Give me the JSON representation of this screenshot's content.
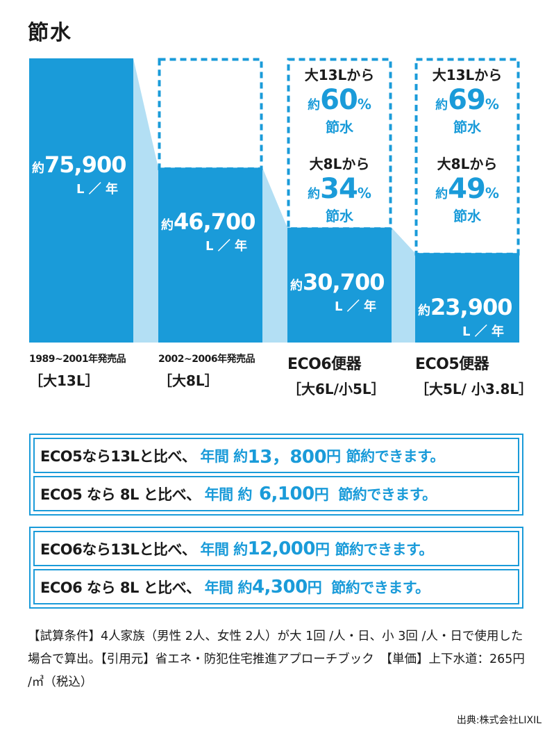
{
  "title": "節水",
  "colors": {
    "bar": "#1a9bd9",
    "connector": "#b3dff4",
    "text_blue": "#1a9bd9",
    "text_dark": "#1a1a1a"
  },
  "chart_data": {
    "type": "bar",
    "title": "節水",
    "unit": "L／年",
    "ylim": [
      0,
      75900
    ],
    "categories": [
      "1989~2001年発売品 ［大13L］",
      "2002~2006年発売品 ［大8L］",
      "ECO6便器 ［大6L/小5L］",
      "ECO5便器 ［大5L/小3.8L］"
    ],
    "values": [
      75900,
      46700,
      30700,
      23900
    ],
    "bars": [
      {
        "name": "1989~2001年発売品",
        "spec": "［大13L］",
        "value": 75900,
        "prefix": "約",
        "value_label": "75,900",
        "unit": "L ／ 年",
        "savings": []
      },
      {
        "name": "2002~2006年発売品",
        "spec": "［大8L］",
        "value": 46700,
        "prefix": "約",
        "value_label": "46,700",
        "unit": "L ／ 年",
        "savings": []
      },
      {
        "name": "ECO6便器",
        "spec": "［大6L/小5L］",
        "value": 30700,
        "prefix": "約",
        "value_label": "30,700",
        "unit": "L ／ 年",
        "savings": [
          {
            "from": "大13Lから",
            "prefix": "約",
            "percent": "60",
            "sign": "%",
            "label": "節水"
          },
          {
            "from": "大8Lから",
            "prefix": "約",
            "percent": "34",
            "sign": "%",
            "label": "節水"
          }
        ]
      },
      {
        "name": "ECO5便器",
        "spec": "［大5L/ 小3.8L］",
        "value": 23900,
        "prefix": "約",
        "value_label": "23,900",
        "unit": "L ／ 年",
        "savings": [
          {
            "from": "大13Lから",
            "prefix": "約",
            "percent": "69",
            "sign": "%",
            "label": "節水"
          },
          {
            "from": "大8Lから",
            "prefix": "約",
            "percent": "49",
            "sign": "%",
            "label": "節水"
          }
        ]
      }
    ]
  },
  "comparisons": [
    [
      {
        "lead": "ECO5なら13Lと比べ、",
        "annual": "年間 約",
        "amount": "13，800",
        "yen": "円",
        "tail": "節約できます。"
      },
      {
        "lead": "ECO5 なら 8L と比べ、",
        "annual": "年間 約",
        "amount": "6,100",
        "yen": "円",
        "tail": "節約できます。"
      }
    ],
    [
      {
        "lead": "ECO6なら13Lと比べ、",
        "annual": "年間 約",
        "amount": "12,000",
        "yen": "円",
        "tail": "節約できます。"
      },
      {
        "lead": "ECO6 なら 8L と比べ、",
        "annual": "年間 約",
        "amount": "4,300",
        "yen": "円",
        "tail": "節約できます。"
      }
    ]
  ],
  "note": "【試算条件】4人家族（男性 2人、女性 2人）が大 1回 /人・日、小 3回 /人・日で使用した場合で算出。【引用元】省エネ・防犯住宅推進アプローチブック　【単価】上下水道：265円 /㎥（税込）",
  "source": "出典:株式会社LIXIL"
}
